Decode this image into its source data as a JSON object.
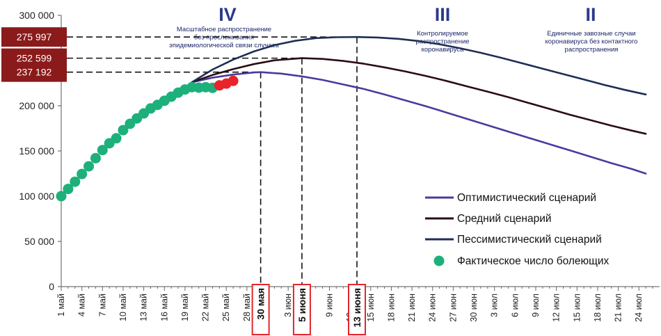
{
  "chart_data": {
    "type": "line",
    "title": "",
    "xlabel": "",
    "ylabel": "",
    "ylim": [
      0,
      300000
    ],
    "yticks": [
      0,
      50000,
      100000,
      150000,
      200000,
      250000,
      300000
    ],
    "ytick_labels": [
      "0",
      "50 000",
      "100 000",
      "150 000",
      "200 000",
      "250 000",
      "300 000"
    ],
    "x_tick_labels": [
      "1 май",
      "4 май",
      "7 май",
      "10 май",
      "13 май",
      "16 май",
      "19 май",
      "22 май",
      "25 май",
      "28 май",
      "",
      "3 июн",
      "",
      "9 июн",
      "12 июн",
      "15 июн",
      "18 июн",
      "21 июн",
      "24 июн",
      "27 июн",
      "30 июн",
      "3 июл",
      "6 июл",
      "9 июл",
      "12 июл",
      "15 июл",
      "18 июл",
      "21 июл",
      "24 июл"
    ],
    "x_axis": "days since 1 May, one tick every 3 days",
    "grid": false,
    "legend_position": "bottom-right",
    "series": [
      {
        "name": "Оптимистический сценарий",
        "color": "#4b3a9e",
        "points": [
          [
            19,
            226000
          ],
          [
            22,
            231000
          ],
          [
            25,
            234500
          ],
          [
            28,
            236800
          ],
          [
            29,
            237192
          ],
          [
            32,
            235500
          ],
          [
            35,
            232500
          ],
          [
            38,
            228500
          ],
          [
            41,
            223500
          ],
          [
            44,
            218500
          ],
          [
            47,
            212500
          ],
          [
            50,
            206000
          ],
          [
            53,
            199500
          ],
          [
            56,
            192500
          ],
          [
            59,
            185500
          ],
          [
            62,
            178500
          ],
          [
            65,
            171500
          ],
          [
            68,
            164500
          ],
          [
            71,
            157500
          ],
          [
            74,
            150500
          ],
          [
            77,
            143500
          ],
          [
            80,
            136500
          ],
          [
            83,
            130000
          ],
          [
            85,
            125000
          ]
        ]
      },
      {
        "name": "Средний сценарий",
        "color": "#2a0d12",
        "points": [
          [
            19,
            226000
          ],
          [
            22,
            234000
          ],
          [
            25,
            240500
          ],
          [
            28,
            246000
          ],
          [
            31,
            250200
          ],
          [
            35,
            252599
          ],
          [
            38,
            251800
          ],
          [
            41,
            249500
          ],
          [
            44,
            246500
          ],
          [
            47,
            242500
          ],
          [
            50,
            238000
          ],
          [
            53,
            233000
          ],
          [
            56,
            227500
          ],
          [
            59,
            221500
          ],
          [
            62,
            215500
          ],
          [
            65,
            209500
          ],
          [
            68,
            203000
          ],
          [
            71,
            196500
          ],
          [
            74,
            190000
          ],
          [
            77,
            184000
          ],
          [
            80,
            178000
          ],
          [
            83,
            172500
          ],
          [
            85,
            169000
          ]
        ]
      },
      {
        "name": "Пессимистический сценарий",
        "color": "#1e2e55",
        "points": [
          [
            19,
            226000
          ],
          [
            22,
            240000
          ],
          [
            25,
            251000
          ],
          [
            28,
            260000
          ],
          [
            31,
            267000
          ],
          [
            34,
            271800
          ],
          [
            37,
            274800
          ],
          [
            40,
            275800
          ],
          [
            43,
            275997
          ],
          [
            46,
            275500
          ],
          [
            49,
            274000
          ],
          [
            52,
            271500
          ],
          [
            55,
            268000
          ],
          [
            58,
            263500
          ],
          [
            61,
            258500
          ],
          [
            64,
            253000
          ],
          [
            67,
            247000
          ],
          [
            70,
            241000
          ],
          [
            73,
            235000
          ],
          [
            76,
            229000
          ],
          [
            79,
            223000
          ],
          [
            82,
            217500
          ],
          [
            85,
            212500
          ]
        ]
      },
      {
        "name": "Фактическое число болеющих",
        "type": "scatter",
        "color": "#1db07a",
        "points": [
          [
            0,
            100000
          ],
          [
            1,
            108000
          ],
          [
            2,
            116000
          ],
          [
            3,
            124500
          ],
          [
            4,
            133000
          ],
          [
            5,
            142000
          ],
          [
            6,
            151000
          ],
          [
            7,
            158500
          ],
          [
            8,
            164000
          ],
          [
            9,
            173000
          ],
          [
            10,
            180000
          ],
          [
            11,
            186000
          ],
          [
            12,
            191500
          ],
          [
            13,
            197000
          ],
          [
            14,
            201000
          ],
          [
            15,
            205500
          ],
          [
            16,
            210000
          ],
          [
            17,
            214500
          ],
          [
            18,
            218000
          ],
          [
            19,
            220500
          ],
          [
            20,
            220000
          ],
          [
            21,
            220500
          ],
          [
            22,
            219800
          ]
        ]
      },
      {
        "name": "",
        "type": "scatter",
        "color": "#e8232a",
        "points": [
          [
            23,
            222500
          ],
          [
            24,
            224500
          ],
          [
            25,
            227500
          ]
        ]
      }
    ],
    "reference_levels": [
      {
        "value": 275997,
        "label": "275 997",
        "x": 43
      },
      {
        "value": 252599,
        "label": "252 599",
        "x": 35
      },
      {
        "value": 237192,
        "label": "237 192",
        "x": 29
      }
    ],
    "highlighted_dates": [
      {
        "label": "30 мая",
        "x": 29
      },
      {
        "label": "5 июня",
        "x": 35
      },
      {
        "label": "13 июня",
        "x": 43
      }
    ],
    "phases": [
      {
        "numeral": "IV",
        "note": [
          "Масштабное распространение",
          "без прослеживания",
          "эпидемиологической связи случаев"
        ]
      },
      {
        "numeral": "III",
        "note": [
          "Контролируемое",
          "распространение",
          "коронавируса"
        ]
      },
      {
        "numeral": "II",
        "note": [
          "Единичные завозные случаи",
          "коронавируса без контактного",
          "распространения"
        ]
      }
    ],
    "colors": {
      "marker_box": "#8b1a1a",
      "highlight_border": "#e3262d"
    }
  }
}
